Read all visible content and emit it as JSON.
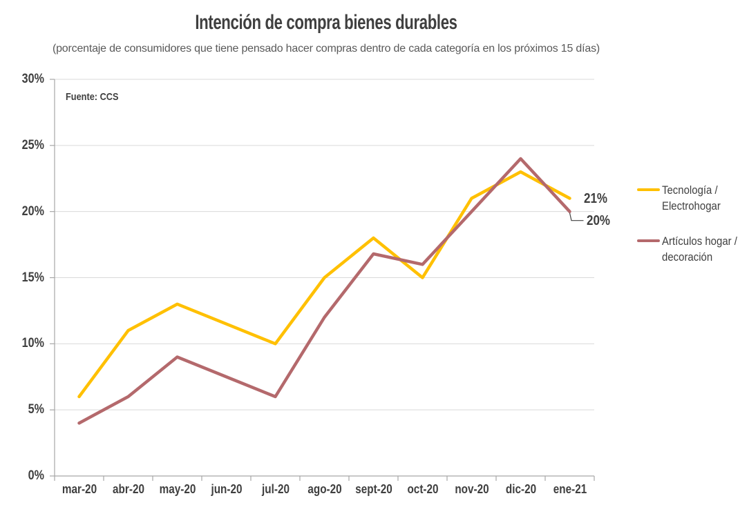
{
  "title": "Intención de compra bienes durables",
  "subtitle": "(porcentaje de consumidores que tiene pensado hacer compras dentro de cada categoría en los próximos 15 días)",
  "source_note": "Fuente: CCS",
  "colors": {
    "series_tecnologia": "#FFC000",
    "series_articulos_hogar": "#B4696C",
    "axis_line": "#A6A6A6",
    "gridline": "#D9D9D9",
    "title_text": "#3F3F3F",
    "subtitle_text": "#595959",
    "leader_line": "#404040"
  },
  "chart_data": {
    "type": "line",
    "title": "Intención de compra bienes durables",
    "subtitle": "(porcentaje de consumidores que tiene pensado hacer compras dentro de cada categoría en los próximos 15 días)",
    "categories": [
      "mar-20",
      "abr-20",
      "may-20",
      "jun-20",
      "jul-20",
      "ago-20",
      "sept-20",
      "oct-20",
      "nov-20",
      "dic-20",
      "ene-21"
    ],
    "series": [
      {
        "name": "Tecnología / Electrohogar",
        "legend_lines": [
          "Tecnología /",
          "Electrohogar"
        ],
        "color": "#FFC000",
        "values": [
          6,
          11,
          13,
          11.5,
          10,
          15,
          18,
          15,
          21,
          23,
          21
        ],
        "end_label": "21%"
      },
      {
        "name": "Artículos hogar / decoración",
        "legend_lines": [
          "Artículos hogar /",
          "decoración"
        ],
        "color": "#B4696C",
        "values": [
          4,
          6,
          9,
          7.5,
          6,
          12,
          16.8,
          16,
          20,
          24,
          20
        ],
        "end_label": "20%"
      }
    ],
    "xlabel": "",
    "ylabel": "",
    "ylim": [
      0,
      30
    ],
    "y_ticks": [
      0,
      5,
      10,
      15,
      20,
      25,
      30
    ],
    "y_tick_labels": [
      "0%",
      "5%",
      "10%",
      "15%",
      "20%",
      "25%",
      "30%"
    ],
    "grid": "horizontal",
    "legend_position": "right",
    "annotations": [
      "Fuente: CCS"
    ]
  }
}
